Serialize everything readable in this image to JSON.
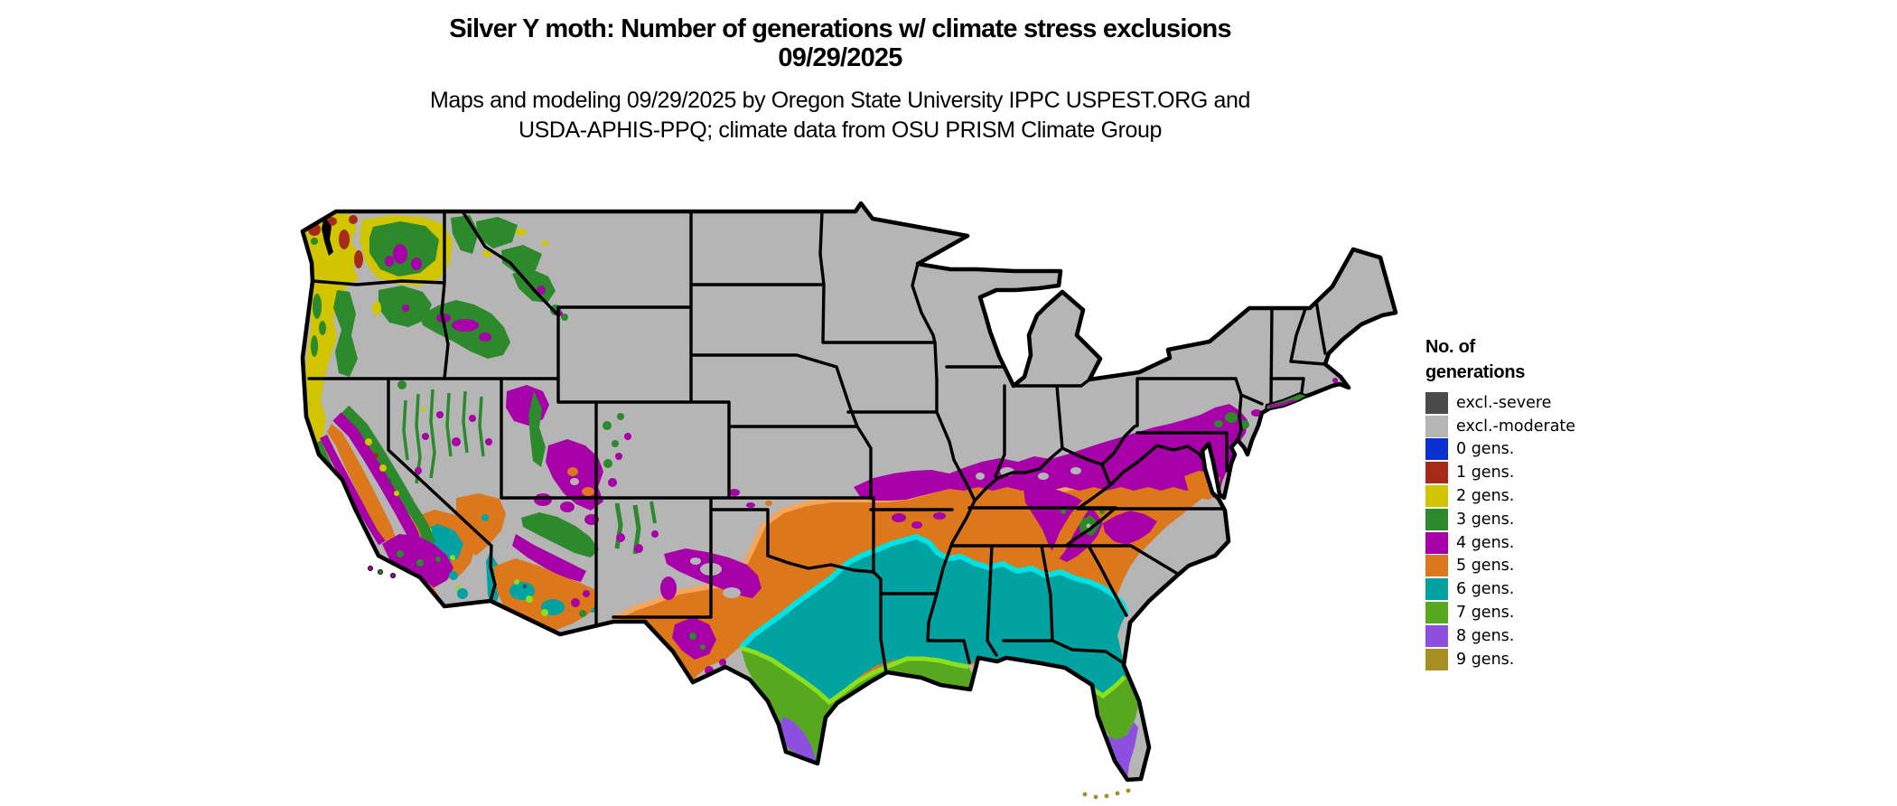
{
  "title": {
    "line1": "Silver Y moth: Number of generations w/ climate stress exclusions",
    "line2": "09/29/2025"
  },
  "subtitle": {
    "line1": "Maps and modeling 09/29/2025 by Oregon State University IPPC USPEST.ORG and",
    "line2": "USDA-APHIS-PPQ; climate data from OSU PRISM Climate Group"
  },
  "legend": {
    "title_line1": "No. of",
    "title_line2": "generations",
    "items": [
      {
        "label": "excl.-severe",
        "color": "#4a4a4a"
      },
      {
        "label": "excl.-moderate",
        "color": "#b5b5b5"
      },
      {
        "label": "0 gens.",
        "color": "#0b30d0"
      },
      {
        "label": "1 gens.",
        "color": "#a52a19"
      },
      {
        "label": "2 gens.",
        "color": "#d1c500"
      },
      {
        "label": "3 gens.",
        "color": "#2c8a2c"
      },
      {
        "label": "4 gens.",
        "color": "#a800a8"
      },
      {
        "label": "5 gens.",
        "color": "#dc781b"
      },
      {
        "label": "6 gens.",
        "color": "#00a2a2"
      },
      {
        "label": "7 gens.",
        "color": "#57a81e"
      },
      {
        "label": "8 gens.",
        "color": "#8d4fe0"
      },
      {
        "label": "9 gens.",
        "color": "#a68e20"
      }
    ]
  },
  "map": {
    "region": "contiguous United States",
    "border_color": "#000000",
    "background_color": "#ffffff",
    "fringe_colors": {
      "orange": "#f2a55c",
      "cyan": "#00e2e2",
      "lime": "#8ae01e"
    }
  }
}
